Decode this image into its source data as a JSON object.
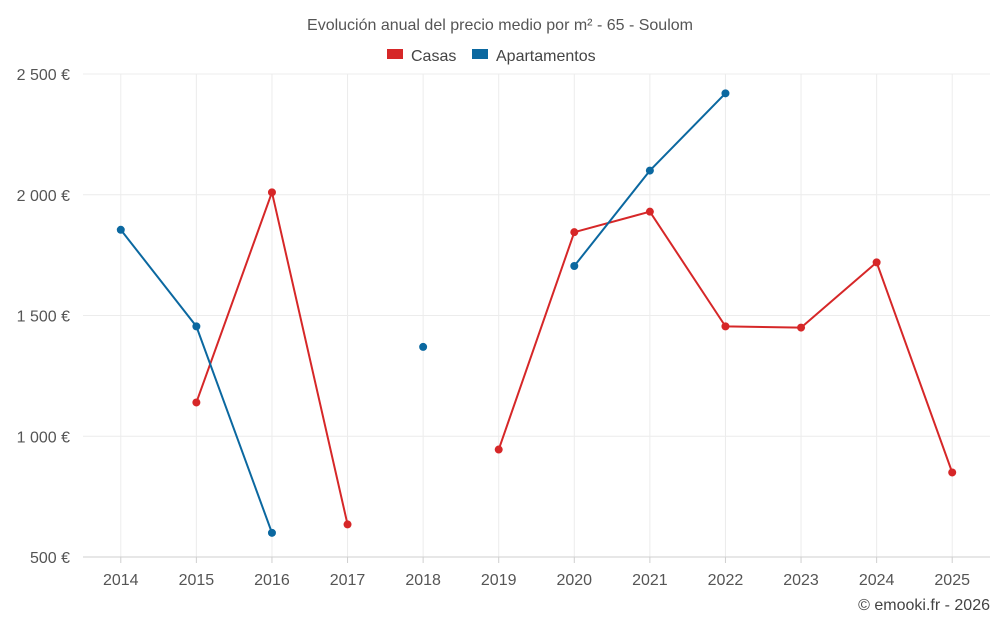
{
  "chart_data": {
    "type": "line",
    "title": "Evolución anual del precio medio por m² - 65 - Soulom",
    "categories": [
      "2014",
      "2015",
      "2016",
      "2017",
      "2018",
      "2019",
      "2020",
      "2021",
      "2022",
      "2023",
      "2024",
      "2025"
    ],
    "yticks": [
      {
        "value": 500,
        "label": "500 €"
      },
      {
        "value": 1000,
        "label": "1 000 €"
      },
      {
        "value": 1500,
        "label": "1 500 €"
      },
      {
        "value": 2000,
        "label": "2 000 €"
      },
      {
        "value": 2500,
        "label": "2 500 €"
      }
    ],
    "ylim": [
      500,
      2500
    ],
    "grid": true,
    "legend_position": "top-center",
    "series": [
      {
        "name": "Casas",
        "color": "#d62728",
        "values": [
          null,
          1140,
          2010,
          635,
          null,
          945,
          1845,
          1930,
          1455,
          1450,
          1720,
          850
        ]
      },
      {
        "name": "Apartamentos",
        "color": "#0b68a0",
        "values": [
          1855,
          1455,
          600,
          null,
          1370,
          null,
          1705,
          2100,
          2420,
          null,
          null,
          null
        ]
      }
    ],
    "credit": "© emooki.fr - 2026"
  }
}
